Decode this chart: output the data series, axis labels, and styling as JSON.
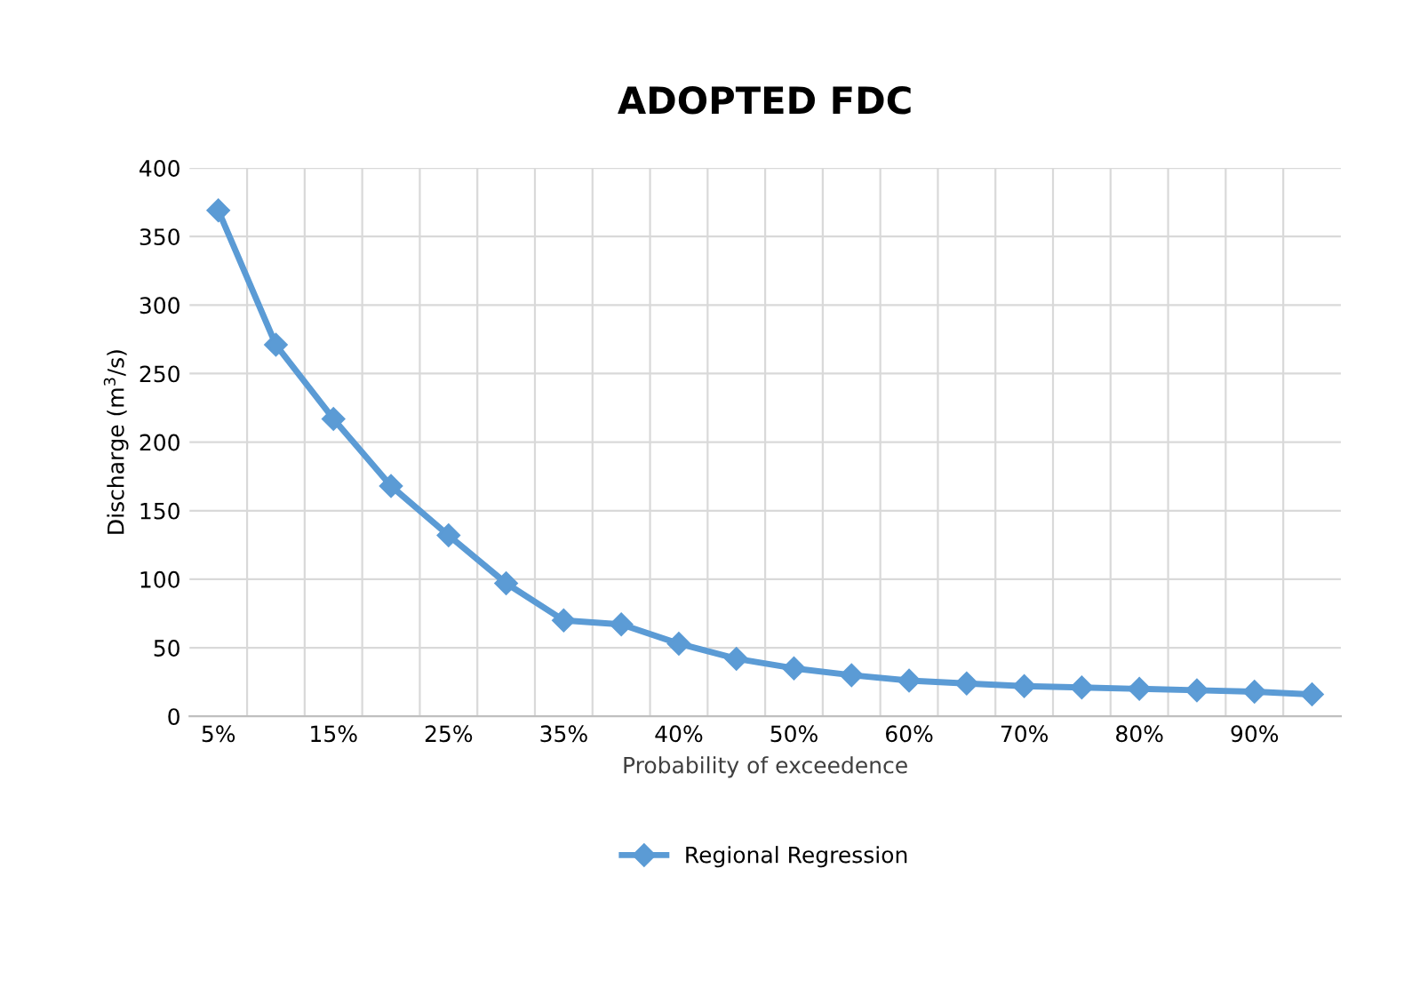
{
  "chart_data": {
    "type": "line",
    "title": "ADOPTED FDC",
    "xlabel": "Probability of exceedence",
    "ylabel": "Discharge (m$^{3}$/s)",
    "categories": [
      "5%",
      null,
      "15%",
      null,
      "25%",
      null,
      "35%",
      null,
      "40%",
      null,
      "50%",
      null,
      "60%",
      null,
      "70%",
      null,
      "80%",
      null,
      "90%",
      null
    ],
    "series": [
      {
        "name": "Regional Regression",
        "color": "#5b9bd5",
        "values": [
          369,
          271,
          217,
          168,
          132,
          97,
          70,
          67,
          53,
          42,
          35,
          30,
          26,
          24,
          22,
          21,
          20,
          19,
          18,
          16
        ]
      }
    ],
    "ylim": [
      0,
      400
    ],
    "yticks": [
      0,
      50,
      100,
      150,
      200,
      250,
      300,
      350,
      400
    ],
    "grid": true,
    "legend": "bottom",
    "marker": "diamond",
    "line_style": "solid"
  }
}
